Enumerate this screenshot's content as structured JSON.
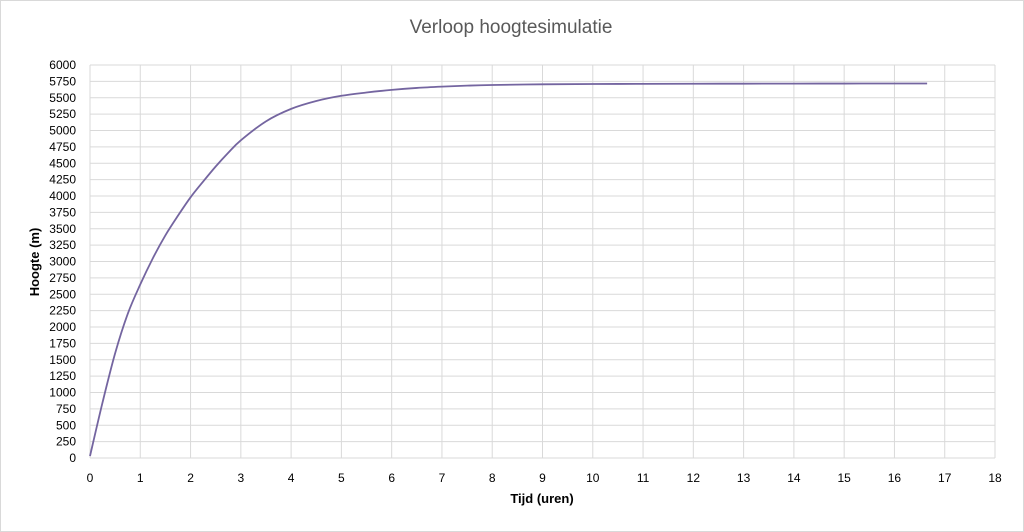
{
  "chart_data": {
    "type": "line",
    "title": "Verloop hoogtesimulatie",
    "xlabel": "Tijd (uren)",
    "ylabel": "Hoogte (m)",
    "xlim": [
      0,
      18
    ],
    "ylim": [
      0,
      6000
    ],
    "x_ticks": [
      0,
      1,
      2,
      3,
      4,
      5,
      6,
      7,
      8,
      9,
      10,
      11,
      12,
      13,
      14,
      15,
      16,
      17,
      18
    ],
    "y_ticks": [
      0,
      250,
      500,
      750,
      1000,
      1250,
      1500,
      1750,
      2000,
      2250,
      2500,
      2750,
      3000,
      3250,
      3500,
      3750,
      4000,
      4250,
      4500,
      4750,
      5000,
      5250,
      5500,
      5750,
      6000
    ],
    "grid": true,
    "line_color": "#7465a0",
    "grid_color": "#d9d9d9",
    "series": [
      {
        "x": [
          0,
          0.25,
          0.5,
          0.75,
          1,
          1.25,
          1.5,
          1.75,
          2,
          2.25,
          2.5,
          2.75,
          3,
          3.5,
          4,
          4.5,
          5,
          5.5,
          6,
          6.5,
          7,
          7.5,
          8,
          9,
          10,
          11,
          12,
          13,
          14,
          15,
          16,
          16.65
        ],
        "y": [
          30,
          850,
          1600,
          2200,
          2650,
          3050,
          3400,
          3700,
          3980,
          4220,
          4450,
          4660,
          4850,
          5140,
          5330,
          5450,
          5530,
          5580,
          5620,
          5650,
          5670,
          5685,
          5695,
          5705,
          5710,
          5712,
          5714,
          5715,
          5716,
          5717,
          5718,
          5718
        ]
      }
    ]
  }
}
